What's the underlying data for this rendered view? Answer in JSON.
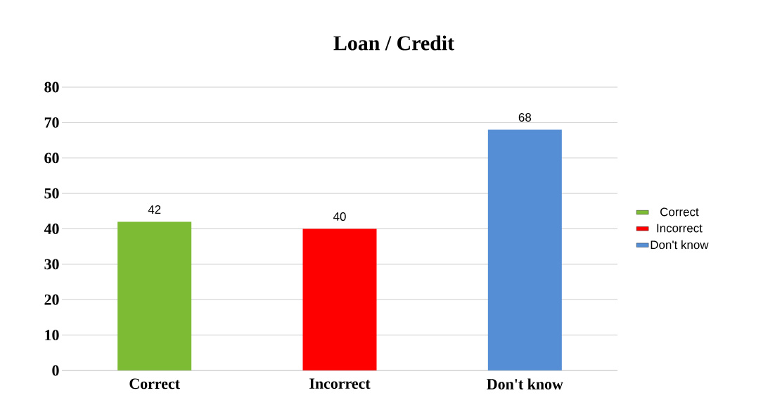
{
  "chart_data": {
    "type": "bar",
    "title": "Loan / Credit",
    "categories": [
      "Correct",
      "Incorrect",
      "Don't know"
    ],
    "series": [
      {
        "name": "Correct",
        "color": "#7cbb33",
        "values": [
          42,
          null,
          null
        ]
      },
      {
        "name": "Incorrect",
        "color": "#ff0000",
        "values": [
          null,
          40,
          null
        ]
      },
      {
        "name": "Don't know",
        "color": "#558ed5",
        "values": [
          null,
          null,
          68
        ]
      }
    ],
    "ylim": [
      0,
      80
    ],
    "yticks": [
      0,
      10,
      20,
      30,
      40,
      50,
      60,
      70,
      80
    ],
    "grid": "y",
    "legend": "right",
    "data_labels": true
  }
}
